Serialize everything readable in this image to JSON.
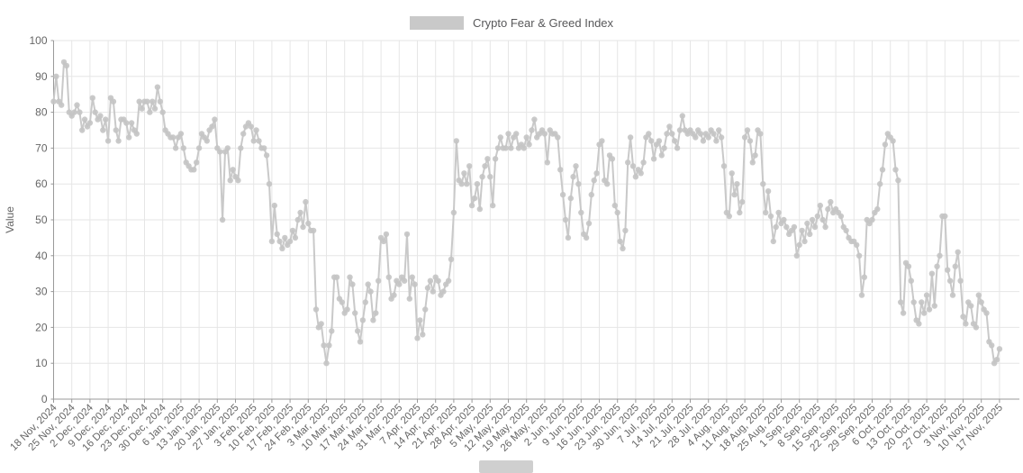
{
  "legend": {
    "series_label": "Crypto Fear & Greed Index"
  },
  "chart_data": {
    "type": "line",
    "title": "Crypto Fear & Greed Index",
    "xlabel": "",
    "ylabel": "Value",
    "ylim": [
      0,
      100
    ],
    "y_tick_step": 10,
    "y_tick_labels": [
      "0",
      "10",
      "20",
      "30",
      "40",
      "50",
      "60",
      "70",
      "80",
      "90",
      "100"
    ],
    "grid": true,
    "legend_position": "top-center",
    "x_unit": "day",
    "x_range_description": "Daily values from 18 Nov 2024 to 17 Nov 2025, weekly x-axis ticks",
    "x_tick_labels": [
      "18 Nov, 2024",
      "25 Nov, 2024",
      "2 Dec, 2024",
      "9 Dec, 2024",
      "16 Dec, 2024",
      "23 Dec, 2024",
      "30 Dec, 2024",
      "6 Jan, 2025",
      "13 Jan, 2025",
      "20 Jan, 2025",
      "27 Jan, 2025",
      "3 Feb, 2025",
      "10 Feb, 2025",
      "17 Feb, 2025",
      "24 Feb, 2025",
      "3 Mar, 2025",
      "10 Mar, 2025",
      "17 Mar, 2025",
      "24 Mar, 2025",
      "31 Mar, 2025",
      "7 Apr, 2025",
      "14 Apr, 2025",
      "21 Apr, 2025",
      "28 Apr, 2025",
      "5 May, 2025",
      "12 May, 2025",
      "19 May, 2025",
      "26 May, 2025",
      "2 Jun, 2025",
      "9 Jun, 2025",
      "16 Jun, 2025",
      "23 Jun, 2025",
      "30 Jun, 2025",
      "7 Jul, 2025",
      "14 Jul, 2025",
      "21 Jul, 2025",
      "28 Jul, 2025",
      "4 Aug, 2025",
      "11 Aug, 2025",
      "18 Aug, 2025",
      "25 Aug, 2025",
      "1 Sep, 2025",
      "8 Sep, 2025",
      "15 Sep, 2025",
      "22 Sep, 2025",
      "29 Sep, 2025",
      "6 Oct, 2025",
      "13 Oct, 2025",
      "20 Oct, 2025",
      "27 Oct, 2025",
      "3 Nov, 2025",
      "10 Nov, 2025",
      "17 Nov, 2025"
    ],
    "series": [
      {
        "name": "Crypto Fear & Greed Index",
        "values": [
          83,
          90,
          83,
          82,
          94,
          93,
          80,
          79,
          80,
          82,
          80,
          75,
          78,
          76,
          77,
          84,
          80,
          78,
          79,
          75,
          78,
          72,
          84,
          83,
          75,
          72,
          78,
          78,
          77,
          73,
          77,
          75,
          74,
          83,
          81,
          83,
          83,
          80,
          83,
          81,
          87,
          83,
          80,
          75,
          74,
          73,
          73,
          70,
          73,
          74,
          70,
          66,
          65,
          64,
          64,
          66,
          70,
          74,
          73,
          72,
          75,
          76,
          78,
          70,
          69,
          50,
          69,
          70,
          61,
          64,
          62,
          61,
          70,
          74,
          76,
          77,
          76,
          72,
          75,
          72,
          70,
          70,
          68,
          60,
          44,
          54,
          46,
          44,
          42,
          45,
          43,
          44,
          47,
          45,
          50,
          52,
          48,
          55,
          49,
          47,
          47,
          25,
          20,
          21,
          15,
          10,
          15,
          19,
          34,
          34,
          28,
          27,
          24,
          25,
          34,
          32,
          24,
          19,
          16,
          22,
          27,
          32,
          30,
          22,
          24,
          33,
          45,
          44,
          46,
          34,
          28,
          29,
          33,
          32,
          34,
          33,
          46,
          28,
          34,
          32,
          17,
          22,
          18,
          25,
          31,
          33,
          30,
          34,
          33,
          29,
          30,
          32,
          33,
          39,
          52,
          72,
          61,
          60,
          63,
          60,
          65,
          54,
          56,
          60,
          53,
          62,
          65,
          67,
          62,
          54,
          67,
          70,
          73,
          70,
          70,
          74,
          70,
          73,
          74,
          70,
          71,
          70,
          73,
          71,
          75,
          78,
          73,
          74,
          75,
          74,
          66,
          75,
          74,
          74,
          73,
          64,
          57,
          50,
          45,
          56,
          62,
          65,
          60,
          52,
          46,
          45,
          49,
          57,
          61,
          63,
          71,
          72,
          61,
          60,
          68,
          67,
          54,
          52,
          44,
          42,
          47,
          66,
          73,
          65,
          62,
          64,
          63,
          66,
          73,
          74,
          72,
          67,
          71,
          72,
          68,
          70,
          74,
          76,
          74,
          72,
          70,
          75,
          79,
          75,
          74,
          75,
          74,
          73,
          75,
          74,
          72,
          74,
          73,
          75,
          74,
          72,
          75,
          73,
          65,
          52,
          51,
          63,
          57,
          60,
          52,
          55,
          73,
          75,
          72,
          66,
          68,
          75,
          74,
          60,
          52,
          58,
          51,
          44,
          48,
          52,
          49,
          50,
          48,
          46,
          47,
          48,
          40,
          43,
          47,
          44,
          49,
          46,
          50,
          48,
          51,
          54,
          50,
          48,
          53,
          55,
          52,
          53,
          52,
          51,
          48,
          47,
          45,
          44,
          44,
          43,
          40,
          29,
          34,
          50,
          49,
          50,
          52,
          53,
          60,
          64,
          71,
          74,
          73,
          72,
          64,
          61,
          27,
          24,
          38,
          37,
          33,
          27,
          22,
          21,
          27,
          24,
          29,
          25,
          35,
          26,
          37,
          40,
          51,
          51,
          36,
          33,
          29,
          37,
          41,
          33,
          23,
          21,
          27,
          26,
          21,
          20,
          29,
          27,
          25,
          24,
          16,
          15,
          10,
          11,
          14
        ]
      }
    ],
    "colors": {
      "series_line": "#c9c9c9",
      "series_dot": "#c4c4c4",
      "grid": "#e6e6e6",
      "axis": "#9a9a9a",
      "tick_text": "#666666",
      "legend_text": "#58585a"
    }
  }
}
